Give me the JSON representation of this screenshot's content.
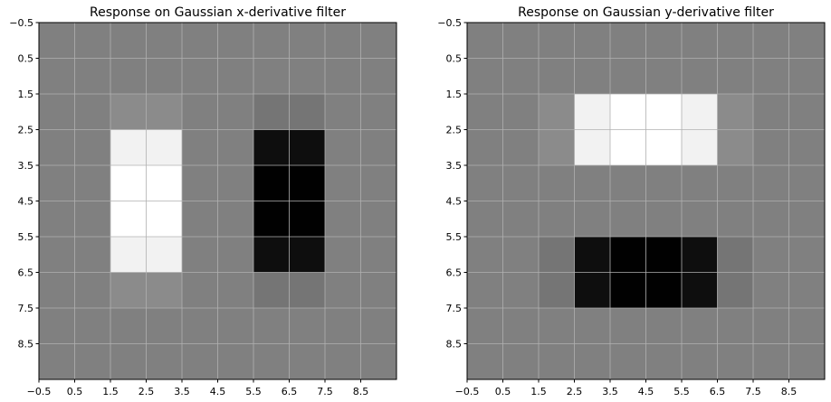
{
  "chart_data": [
    {
      "type": "heatmap",
      "title": "Response on Gaussian x-derivative filter",
      "xticks": [
        "−0.5",
        "0.5",
        "1.5",
        "2.5",
        "3.5",
        "4.5",
        "5.5",
        "6.5",
        "7.5",
        "8.5"
      ],
      "yticks": [
        "−0.5",
        "0.5",
        "1.5",
        "2.5",
        "3.5",
        "4.5",
        "5.5",
        "6.5",
        "7.5",
        "8.5"
      ],
      "xlim": [
        -0.5,
        9.5
      ],
      "ylim": [
        -0.5,
        9.5
      ],
      "y_inverted": true,
      "grid": true,
      "colormap": "gray",
      "values": [
        [
          0,
          0,
          0,
          0,
          0,
          0,
          0,
          0,
          0,
          0
        ],
        [
          0,
          0,
          0,
          0,
          0,
          0,
          0,
          0,
          0,
          0
        ],
        [
          0,
          0,
          0.09,
          0.09,
          0,
          0,
          -0.09,
          -0.09,
          0,
          0
        ],
        [
          0,
          0,
          0.9,
          0.9,
          0,
          0,
          -0.9,
          -0.9,
          0,
          0
        ],
        [
          0,
          0,
          1,
          1,
          0,
          0,
          -1,
          -1,
          0,
          0
        ],
        [
          0,
          0,
          1,
          1,
          0,
          0,
          -1,
          -1,
          0,
          0
        ],
        [
          0,
          0,
          0.9,
          0.9,
          0,
          0,
          -0.9,
          -0.9,
          0,
          0
        ],
        [
          0,
          0,
          0.09,
          0.09,
          0,
          0,
          -0.09,
          -0.09,
          0,
          0
        ],
        [
          0,
          0,
          0,
          0,
          0,
          0,
          0,
          0,
          0,
          0
        ],
        [
          0,
          0,
          0,
          0,
          0,
          0,
          0,
          0,
          0,
          0
        ]
      ]
    },
    {
      "type": "heatmap",
      "title": "Response on Gaussian y-derivative filter",
      "xticks": [
        "−0.5",
        "0.5",
        "1.5",
        "2.5",
        "3.5",
        "4.5",
        "5.5",
        "6.5",
        "7.5",
        "8.5"
      ],
      "yticks": [
        "−0.5",
        "0.5",
        "1.5",
        "2.5",
        "3.5",
        "4.5",
        "5.5",
        "6.5",
        "7.5",
        "8.5"
      ],
      "xlim": [
        -0.5,
        9.5
      ],
      "ylim": [
        -0.5,
        9.5
      ],
      "y_inverted": true,
      "grid": true,
      "colormap": "gray",
      "values": [
        [
          0,
          0,
          0,
          0,
          0,
          0,
          0,
          0,
          0,
          0
        ],
        [
          0,
          0,
          0,
          0,
          0,
          0,
          0,
          0,
          0,
          0
        ],
        [
          0,
          0,
          0.09,
          0.9,
          1,
          1,
          0.9,
          0.09,
          0,
          0
        ],
        [
          0,
          0,
          0.09,
          0.9,
          1,
          1,
          0.9,
          0.09,
          0,
          0
        ],
        [
          0,
          0,
          0,
          0,
          0,
          0,
          0,
          0,
          0,
          0
        ],
        [
          0,
          0,
          0,
          0,
          0,
          0,
          0,
          0,
          0,
          0
        ],
        [
          0,
          0,
          -0.09,
          -0.9,
          -1,
          -1,
          -0.9,
          -0.09,
          0,
          0
        ],
        [
          0,
          0,
          -0.09,
          -0.9,
          -1,
          -1,
          -0.9,
          -0.09,
          0,
          0
        ],
        [
          0,
          0,
          0,
          0,
          0,
          0,
          0,
          0,
          0,
          0
        ],
        [
          0,
          0,
          0,
          0,
          0,
          0,
          0,
          0,
          0,
          0
        ]
      ]
    }
  ]
}
